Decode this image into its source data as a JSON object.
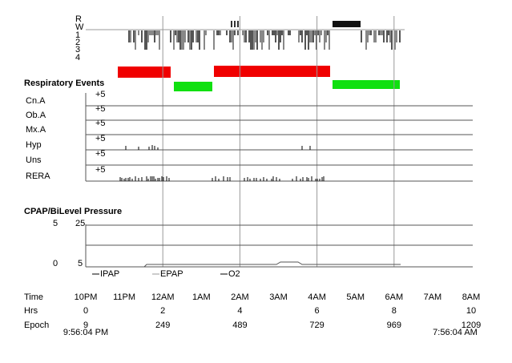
{
  "hypnogram": {
    "stages": [
      "R",
      "W",
      "1",
      "2",
      "3",
      "4"
    ]
  },
  "respiratory_events": {
    "title": "Respiratory Events",
    "rows": [
      {
        "label": "Cn.A",
        "scale": "+5"
      },
      {
        "label": "Ob.A",
        "scale": "+5"
      },
      {
        "label": "Mx.A",
        "scale": "+5"
      },
      {
        "label": "Hyp",
        "scale": "+5"
      },
      {
        "label": "Uns",
        "scale": "+5"
      },
      {
        "label": "RERA",
        "scale": "+5"
      }
    ]
  },
  "pressure": {
    "title": "CPAP/BiLevel Pressure",
    "left_top": "5",
    "right_top": "25",
    "left_bottom": "0",
    "right_bottom": "5",
    "legend": [
      "IPAP",
      "EPAP",
      "O2"
    ]
  },
  "footer": {
    "time": {
      "label": "Time",
      "ticks": [
        "10PM",
        "11PM",
        "12AM",
        "1AM",
        "2AM",
        "3AM",
        "4AM",
        "5AM",
        "6AM",
        "7AM",
        "8AM"
      ]
    },
    "hrs": {
      "label": "Hrs",
      "ticks": [
        "0",
        "2",
        "4",
        "6",
        "8",
        "10"
      ]
    },
    "epoch": {
      "label": "Epoch",
      "ticks": [
        "9",
        "249",
        "489",
        "729",
        "969",
        "1209"
      ]
    },
    "start": "9:56:04 PM",
    "end": "7:56:04 AM"
  }
}
